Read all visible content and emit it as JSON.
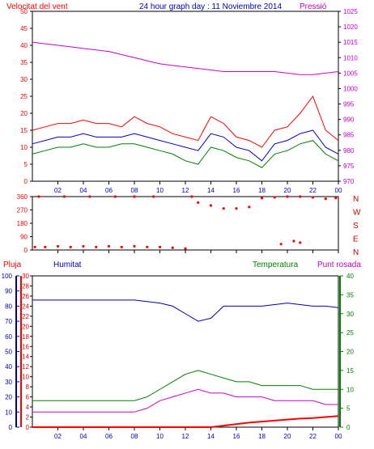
{
  "title": "24 hour graph day : 11 Noviembre 2014",
  "colors": {
    "wind": "#ff0000",
    "wind_avg": "#0000cc",
    "wind_gust": "#008000",
    "pressure": "#cc00cc",
    "direction": "#ff0000",
    "rain": "#ff0000",
    "humidity": "#0000aa",
    "temperature": "#008000",
    "dewpoint": "#cc00cc",
    "grid": "#808080",
    "frame": "#000000"
  },
  "x_ticks": [
    "02",
    "04",
    "06",
    "08",
    "10",
    "12",
    "14",
    "16",
    "18",
    "20",
    "22",
    "00"
  ],
  "chart_data": [
    {
      "type": "line",
      "panel": "wind_pressure",
      "left_label": "Velocitat del vent",
      "right_label": "Pressió",
      "left_ticks": [
        "0",
        "5",
        "10",
        "15",
        "20",
        "25",
        "30",
        "35",
        "40",
        "45",
        "50"
      ],
      "right_ticks": [
        "970",
        "975",
        "980",
        "985",
        "990",
        "995",
        "1000",
        "1005",
        "1010",
        "1015",
        "1020",
        "1025"
      ],
      "ylim_left": [
        0,
        50
      ],
      "ylim_right": [
        970,
        1025
      ],
      "hours": [
        0,
        1,
        2,
        3,
        4,
        5,
        6,
        7,
        8,
        9,
        10,
        11,
        12,
        13,
        14,
        15,
        16,
        17,
        18,
        19,
        20,
        21,
        22,
        23,
        24
      ],
      "series": [
        {
          "axis": "left",
          "key": "wind",
          "values": [
            15,
            16,
            17,
            17,
            18,
            17,
            17,
            16,
            19,
            17,
            16,
            14,
            13,
            12,
            19,
            17,
            13,
            12,
            10,
            15,
            16,
            20,
            25,
            15,
            12
          ]
        },
        {
          "axis": "left",
          "key": "wind_avg",
          "values": [
            11,
            12,
            13,
            13,
            14,
            13,
            13,
            13,
            14,
            13,
            12,
            11,
            10,
            9,
            14,
            13,
            10,
            9,
            6,
            11,
            12,
            14,
            15,
            10,
            8
          ]
        },
        {
          "axis": "left",
          "key": "wind_gust",
          "values": [
            8,
            9,
            10,
            10,
            11,
            10,
            10,
            11,
            11,
            10,
            9,
            8,
            6,
            5,
            10,
            9,
            7,
            6,
            4,
            8,
            9,
            11,
            12,
            8,
            6
          ]
        },
        {
          "axis": "right",
          "key": "pressure",
          "values": [
            1015,
            1014.5,
            1014,
            1013.5,
            1013,
            1012.5,
            1012,
            1011,
            1010,
            1009,
            1008,
            1007.5,
            1007,
            1006.5,
            1006,
            1005.5,
            1005.5,
            1005.5,
            1005.5,
            1005.5,
            1005,
            1004.5,
            1004.5,
            1005,
            1005.5
          ]
        }
      ]
    },
    {
      "type": "scatter",
      "panel": "wind_direction",
      "ticks": [
        "0",
        "90",
        "180",
        "270",
        "360"
      ],
      "compass": [
        "N",
        "W",
        "S",
        "E",
        "N"
      ],
      "ylim": [
        0,
        360
      ],
      "points": [
        [
          0.2,
          20
        ],
        [
          1,
          20
        ],
        [
          2,
          25
        ],
        [
          3,
          20
        ],
        [
          4,
          25
        ],
        [
          5,
          20
        ],
        [
          6,
          25
        ],
        [
          7,
          20
        ],
        [
          8,
          25
        ],
        [
          9,
          20
        ],
        [
          10,
          20
        ],
        [
          11,
          15
        ],
        [
          12,
          10
        ],
        [
          13,
          320
        ],
        [
          14,
          300
        ],
        [
          15,
          280
        ],
        [
          16,
          280
        ],
        [
          17,
          290
        ],
        [
          18,
          350
        ],
        [
          19,
          355
        ],
        [
          20,
          360
        ],
        [
          21,
          360
        ],
        [
          22,
          355
        ],
        [
          23,
          345
        ],
        [
          23.8,
          350
        ],
        [
          0.5,
          360
        ],
        [
          2.5,
          360
        ],
        [
          4.5,
          360
        ],
        [
          6.5,
          360
        ],
        [
          8,
          360
        ],
        [
          9.5,
          360
        ],
        [
          12.5,
          360
        ],
        [
          19.5,
          40
        ],
        [
          20.5,
          60
        ],
        [
          21,
          50
        ]
      ]
    },
    {
      "type": "line",
      "panel": "temp_humidity_rain",
      "left_label": "Pluja",
      "humidity_label": "Humitat",
      "temperature_label": "Temperatura",
      "dewpoint_label": "Punt rosada",
      "humidity_ticks": [
        "0",
        "10",
        "20",
        "30",
        "40",
        "50",
        "60",
        "70",
        "80",
        "90",
        "100"
      ],
      "rain_ticks": [
        "0",
        "2",
        "4",
        "6",
        "8",
        "10",
        "12",
        "14",
        "16",
        "18",
        "20",
        "22",
        "24",
        "26",
        "28",
        "30"
      ],
      "temp_ticks": [
        "0",
        "5",
        "10",
        "15",
        "20",
        "25",
        "30",
        "35",
        "40"
      ],
      "ylim_humidity": [
        0,
        100
      ],
      "ylim_rain": [
        0,
        30
      ],
      "ylim_temp": [
        0,
        40
      ],
      "hours": [
        0,
        1,
        2,
        3,
        4,
        5,
        6,
        7,
        8,
        9,
        10,
        11,
        12,
        13,
        14,
        15,
        16,
        17,
        18,
        19,
        20,
        21,
        22,
        23,
        24
      ],
      "series": [
        {
          "axis": "humidity",
          "key": "humidity",
          "values": [
            84,
            84,
            84,
            84,
            84,
            84,
            84,
            84,
            84,
            83,
            82,
            80,
            75,
            70,
            72,
            80,
            80,
            80,
            80,
            81,
            82,
            81,
            80,
            80,
            79
          ]
        },
        {
          "axis": "temp",
          "key": "temperature",
          "values": [
            7,
            7,
            7,
            7,
            7,
            7,
            7,
            7,
            7,
            8,
            10,
            12,
            14,
            15,
            14,
            13,
            12,
            12,
            11,
            11,
            11,
            11,
            10,
            10,
            10
          ]
        },
        {
          "axis": "temp",
          "key": "dewpoint",
          "values": [
            4,
            4,
            4,
            4,
            4,
            4,
            4,
            4,
            4,
            5,
            7,
            8,
            9,
            10,
            9,
            9,
            8,
            8,
            8,
            7,
            7,
            7,
            7,
            6,
            6
          ]
        },
        {
          "axis": "rain",
          "key": "rain",
          "values": [
            0,
            0,
            0,
            0,
            0,
            0,
            0,
            0,
            0,
            0,
            0,
            0,
            0,
            0,
            0,
            0.3,
            0.6,
            0.9,
            1.1,
            1.3,
            1.5,
            1.7,
            1.8,
            2.0,
            2.2
          ]
        }
      ]
    }
  ]
}
